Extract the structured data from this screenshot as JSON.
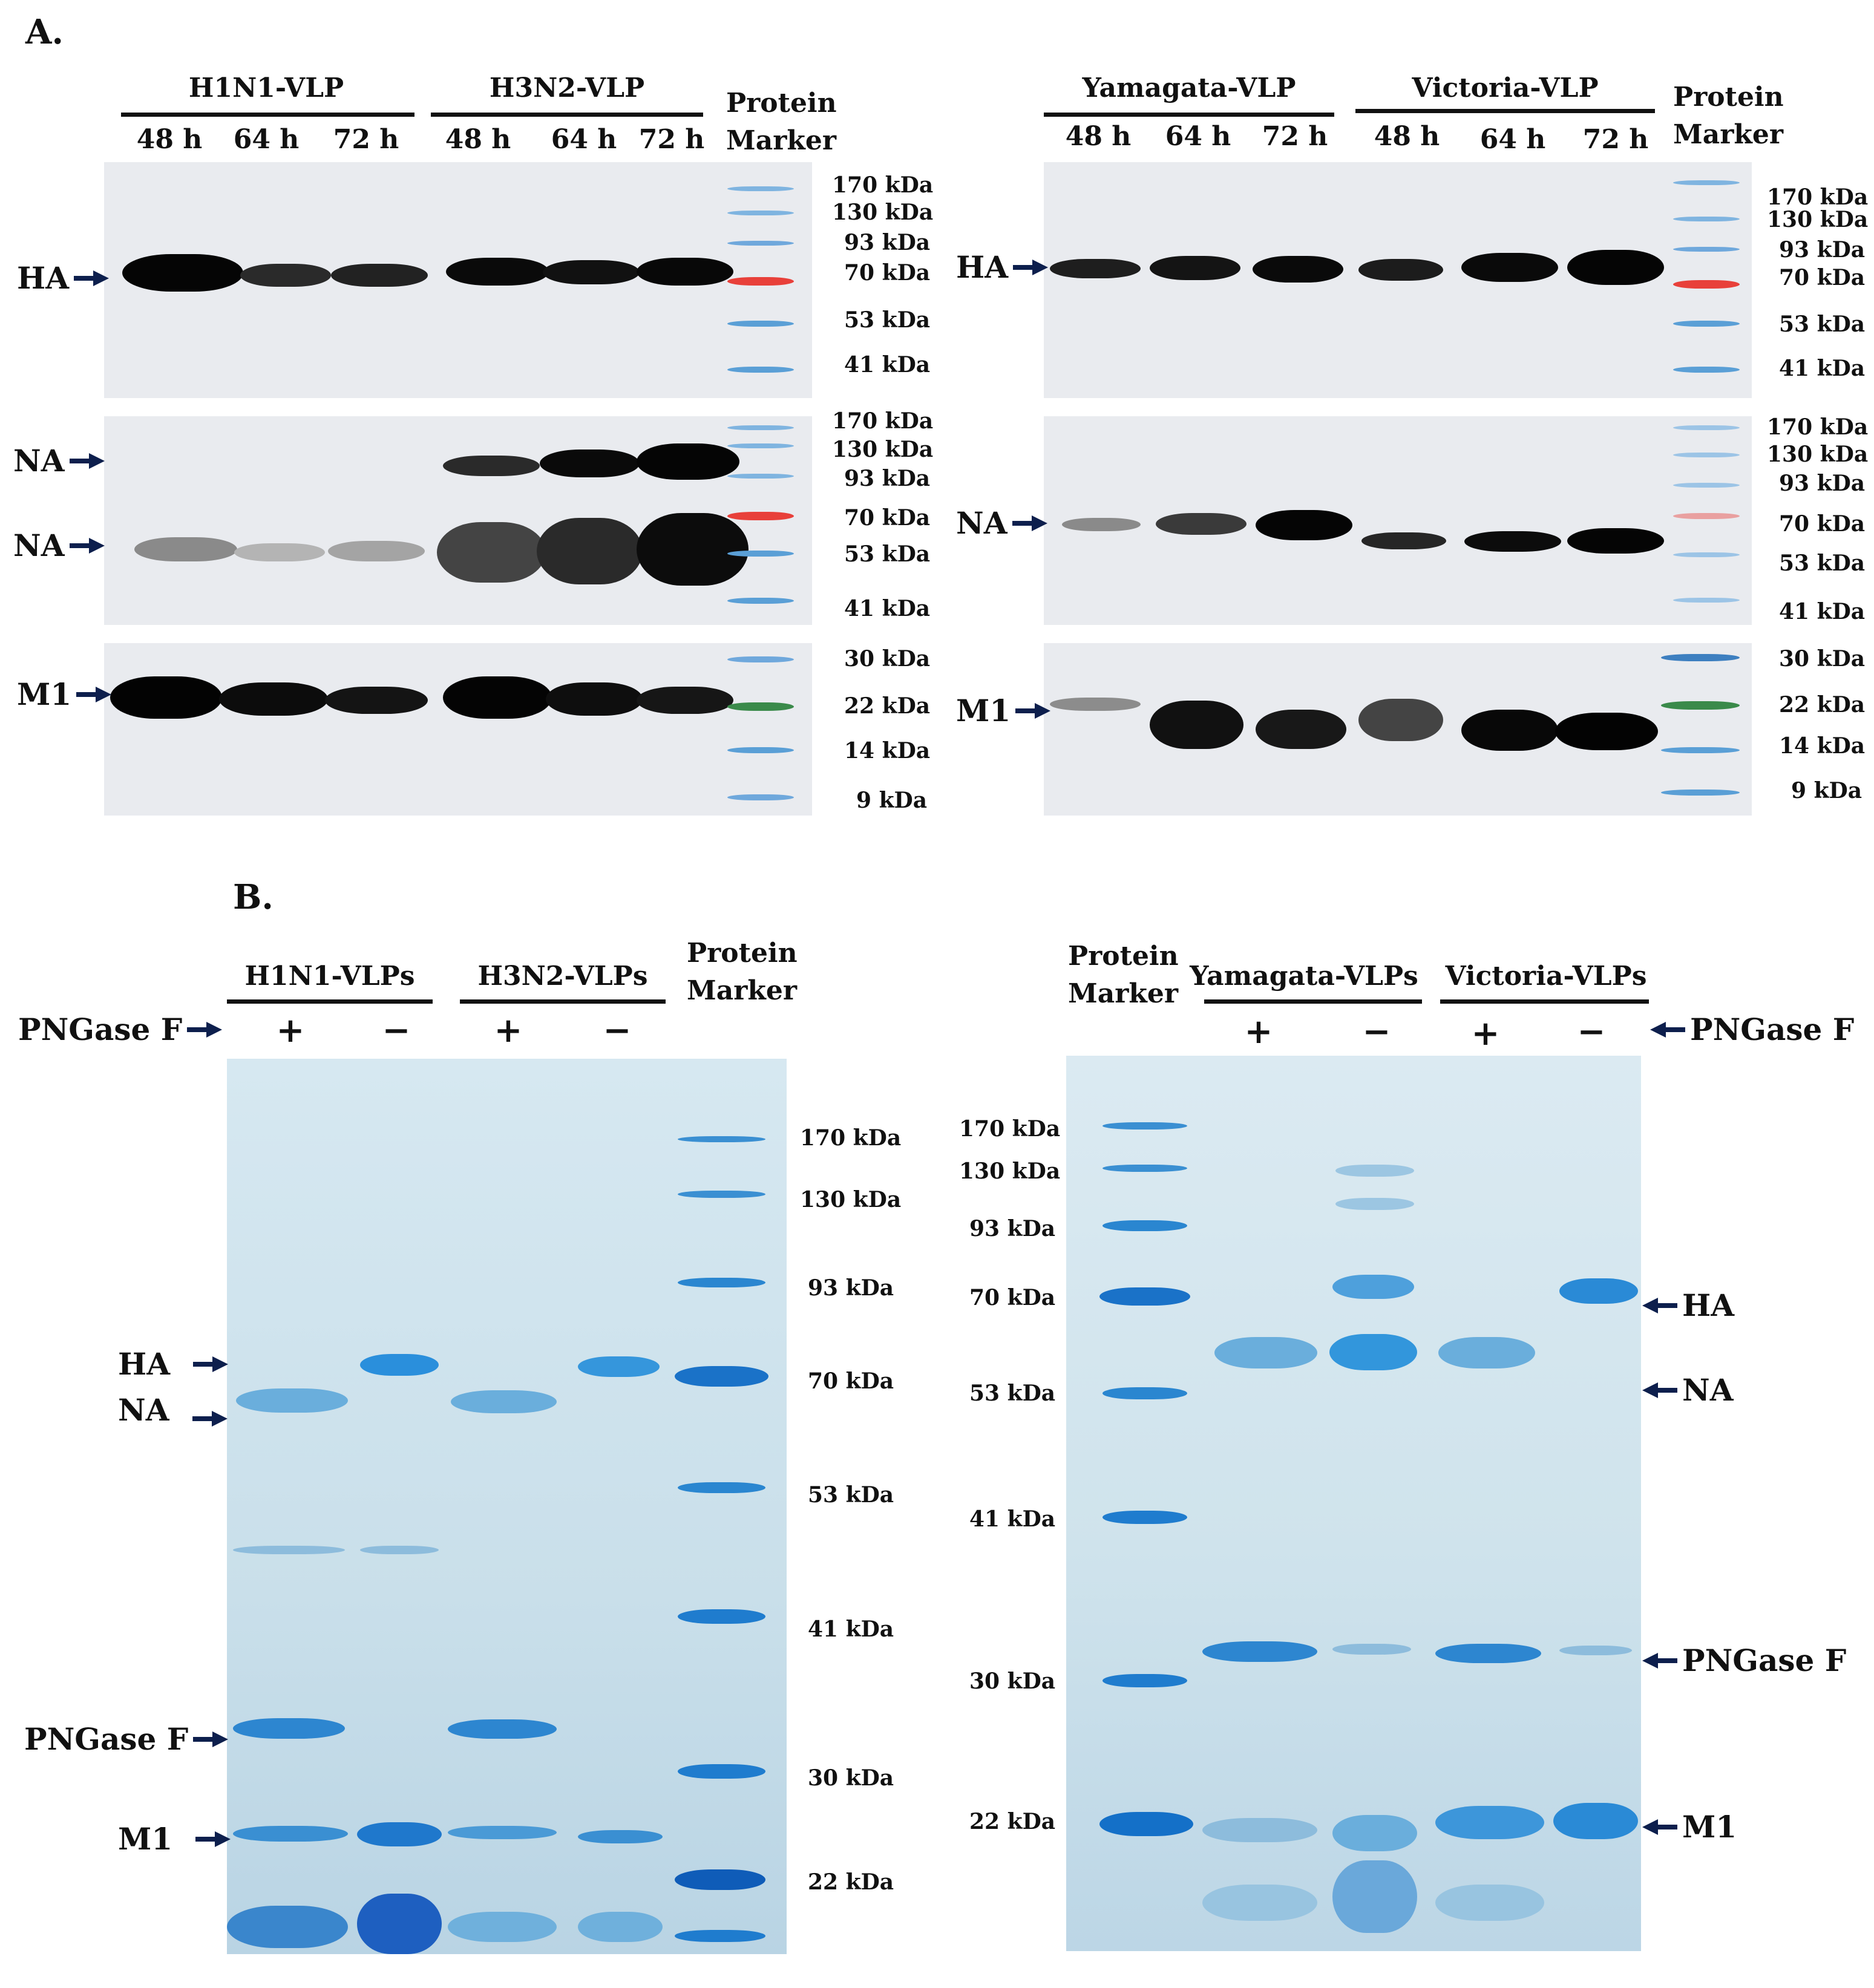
{
  "panel_a": {
    "label": "A.",
    "left": {
      "groups": [
        "H1N1-VLP",
        "H3N2-VLP"
      ],
      "lanes": [
        "48 h",
        "64 h",
        "72 h",
        "48 h",
        "64 h",
        "72 h"
      ],
      "marker": [
        "Protein",
        "Marker"
      ],
      "ha_kda": [
        "170 kDa",
        "130 kDa",
        "93 kDa",
        "70 kDa",
        "53 kDa",
        "41 kDa"
      ],
      "na_kda": [
        "170 kDa",
        "130 kDa",
        "93 kDa",
        "70 kDa",
        "53 kDa",
        "41 kDa"
      ],
      "m1_kda": [
        "30 kDa",
        "22 kDa",
        "14 kDa",
        "9 kDa"
      ],
      "labels": {
        "ha": "HA",
        "na1": "NA",
        "na2": "NA",
        "m1": "M1"
      }
    },
    "right": {
      "groups": [
        "Yamagata-VLP",
        "Victoria-VLP"
      ],
      "lanes": [
        "48 h",
        "64 h",
        "72 h",
        "48 h",
        "64 h",
        "72 h"
      ],
      "marker": [
        "Protein",
        "Marker"
      ],
      "ha_kda": [
        "170 kDa",
        "130 kDa",
        "93 kDa",
        "70 kDa",
        "53 kDa",
        "41 kDa"
      ],
      "na_kda": [
        "170 kDa",
        "130 kDa",
        "93 kDa",
        "70 kDa",
        "53 kDa",
        "41 kDa"
      ],
      "m1_kda": [
        "30 kDa",
        "22 kDa",
        "14 kDa",
        "9 kDa"
      ],
      "labels": {
        "ha": "HA",
        "na": "NA",
        "m1": "M1"
      }
    }
  },
  "panel_b": {
    "label": "B.",
    "left": {
      "groups": [
        "H1N1-VLPs",
        "H3N2-VLPs"
      ],
      "marker": [
        "Protein",
        "Marker"
      ],
      "pngase_label": "PNGase F",
      "signs": [
        "+",
        "−",
        "+",
        "−"
      ],
      "kda": [
        "170 kDa",
        "130 kDa",
        "93 kDa",
        "70 kDa",
        "53 kDa",
        "41 kDa",
        "30 kDa",
        "22 kDa"
      ],
      "labels": {
        "ha": "HA",
        "na": "NA",
        "pngase": "PNGase F",
        "m1": "M1"
      }
    },
    "right": {
      "groups": [
        "Yamagata-VLPs",
        "Victoria-VLPs"
      ],
      "marker": [
        "Protein",
        "Marker"
      ],
      "pngase_label": "PNGase F",
      "signs": [
        "+",
        "−",
        "+",
        "−"
      ],
      "kda": [
        "170 kDa",
        "130 kDa",
        "93 kDa",
        "70 kDa",
        "53 kDa",
        "41 kDa",
        "30 kDa",
        "22 kDa"
      ],
      "labels": {
        "ha": "HA",
        "na": "NA",
        "pngase": "PNGase F",
        "m1": "M1"
      }
    }
  },
  "colors": {
    "arrow": "#0d1f4d",
    "blot_bg": "#e9ebef",
    "band_dark": "#0a0a0a",
    "gel_bg": "#cfe2ec",
    "gel_band": "#1f7fd0",
    "marker_red": "#e8403a",
    "marker_green": "#3a8a4a",
    "marker_blue": "#5a9fd6"
  }
}
